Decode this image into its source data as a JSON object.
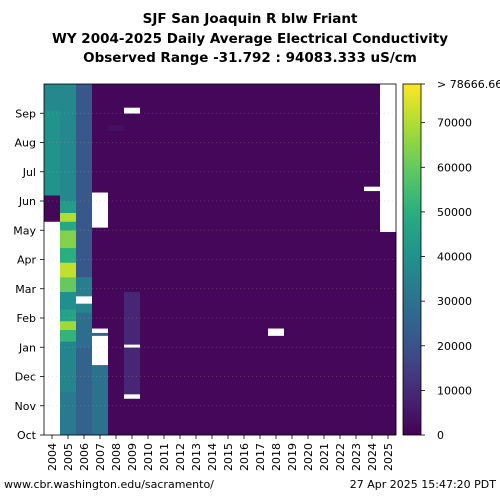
{
  "title_lines": [
    "SJF San Joaquin R blw Friant",
    "WY 2004-2025 Daily Average Electrical Conductivity",
    "Observed Range -31.792 : 94083.333 uS/cm"
  ],
  "footer": {
    "url": "www.cbr.washington.edu/sacramento/",
    "timestamp": "27 Apr 2025 15:47:20 PDT"
  },
  "chart_data": {
    "type": "heatmap",
    "title": "SJF San Joaquin R blw Friant WY 2004-2025 Daily Average Electrical Conductivity",
    "subtitle": "Observed Range -31.792 : 94083.333 uS/cm",
    "x_categories": [
      "2004",
      "2005",
      "2006",
      "2007",
      "2008",
      "2009",
      "2010",
      "2011",
      "2012",
      "2013",
      "2014",
      "2015",
      "2016",
      "2017",
      "2018",
      "2019",
      "2020",
      "2021",
      "2022",
      "2023",
      "2024",
      "2025"
    ],
    "y_ticks": [
      "Oct",
      "Nov",
      "Dec",
      "Jan",
      "Feb",
      "Mar",
      "Apr",
      "May",
      "Jun",
      "Jul",
      "Aug",
      "Sep"
    ],
    "colorbar": {
      "colormap": "viridis",
      "range": [
        0,
        78666.66
      ],
      "ticks": [
        0,
        10000,
        20000,
        30000,
        40000,
        50000,
        60000,
        70000
      ],
      "tick_labels": [
        "0",
        "10000",
        "20000",
        "30000",
        "40000",
        "50000",
        "60000",
        "70000"
      ],
      "overflow_label": "> 78666.66"
    },
    "background_value": 1500,
    "columns": [
      {
        "year": "2004",
        "segments": [
          {
            "from": 0,
            "to": 7.3,
            "value": null
          },
          {
            "from": 7.3,
            "to": 8.2,
            "value": 1500
          },
          {
            "from": 8.2,
            "to": 11.1,
            "value": 40000
          },
          {
            "from": 11.1,
            "to": 12,
            "value": 37000
          }
        ]
      },
      {
        "year": "2005",
        "segments": [
          {
            "from": 0,
            "to": 1.5,
            "value": 33000
          },
          {
            "from": 1.5,
            "to": 3.2,
            "value": 36000
          },
          {
            "from": 3.2,
            "to": 3.6,
            "value": 52000
          },
          {
            "from": 3.6,
            "to": 3.9,
            "value": 68000
          },
          {
            "from": 3.9,
            "to": 4.3,
            "value": 46000
          },
          {
            "from": 4.3,
            "to": 4.9,
            "value": 39000
          },
          {
            "from": 4.9,
            "to": 5.4,
            "value": 60000
          },
          {
            "from": 5.4,
            "to": 5.9,
            "value": 72000
          },
          {
            "from": 5.9,
            "to": 6.4,
            "value": 50000
          },
          {
            "from": 6.4,
            "to": 7.0,
            "value": 64000
          },
          {
            "from": 7.0,
            "to": 7.3,
            "value": 48000
          },
          {
            "from": 7.3,
            "to": 7.6,
            "value": 70000
          },
          {
            "from": 7.6,
            "to": 8.0,
            "value": 44000
          },
          {
            "from": 8.0,
            "to": 12,
            "value": 37000
          }
        ]
      },
      {
        "year": "2006",
        "segments": [
          {
            "from": 0,
            "to": 3.0,
            "value": 25000
          },
          {
            "from": 3.0,
            "to": 4.2,
            "value": 29000
          },
          {
            "from": 4.2,
            "to": 4.5,
            "value": 36000
          },
          {
            "from": 4.5,
            "to": 4.75,
            "value": null
          },
          {
            "from": 4.75,
            "to": 5.4,
            "value": 34000
          },
          {
            "from": 5.4,
            "to": 12,
            "value": 22000
          }
        ]
      },
      {
        "year": "2007",
        "segments": [
          {
            "from": 0,
            "to": 2.4,
            "value": 30000
          },
          {
            "from": 2.4,
            "to": 3.4,
            "value": null
          },
          {
            "from": 3.4,
            "to": 3.5,
            "value": 26000
          },
          {
            "from": 3.5,
            "to": 3.65,
            "value": null
          },
          {
            "from": 3.65,
            "to": 7.1,
            "value": 1500
          },
          {
            "from": 7.1,
            "to": 8.3,
            "value": null
          },
          {
            "from": 8.3,
            "to": 12,
            "value": 1500
          }
        ]
      },
      {
        "year": "2008",
        "segments": [
          {
            "from": 0,
            "to": 10.4,
            "value": 1500
          },
          {
            "from": 10.4,
            "to": 10.6,
            "value": 3500
          },
          {
            "from": 10.6,
            "to": 12,
            "value": 1500
          }
        ]
      },
      {
        "year": "2009",
        "segments": [
          {
            "from": 0,
            "to": 1.25,
            "value": 1500
          },
          {
            "from": 1.25,
            "to": 1.4,
            "value": null
          },
          {
            "from": 1.4,
            "to": 3.0,
            "value": 9000
          },
          {
            "from": 3.0,
            "to": 3.1,
            "value": null
          },
          {
            "from": 3.1,
            "to": 4.9,
            "value": 9000
          },
          {
            "from": 4.9,
            "to": 11.0,
            "value": 1500
          },
          {
            "from": 11.0,
            "to": 11.2,
            "value": null
          },
          {
            "from": 11.2,
            "to": 12,
            "value": 1500
          }
        ]
      },
      {
        "year": "2010",
        "segments": [
          {
            "from": 0,
            "to": 12,
            "value": 1500
          }
        ]
      },
      {
        "year": "2011",
        "segments": [
          {
            "from": 0,
            "to": 12,
            "value": 1500
          }
        ]
      },
      {
        "year": "2012",
        "segments": [
          {
            "from": 0,
            "to": 12,
            "value": 1500
          }
        ]
      },
      {
        "year": "2013",
        "segments": [
          {
            "from": 0,
            "to": 12,
            "value": 1500
          }
        ]
      },
      {
        "year": "2014",
        "segments": [
          {
            "from": 0,
            "to": 12,
            "value": 1500
          }
        ]
      },
      {
        "year": "2015",
        "segments": [
          {
            "from": 0,
            "to": 12,
            "value": 1500
          }
        ]
      },
      {
        "year": "2016",
        "segments": [
          {
            "from": 0,
            "to": 12,
            "value": 1500
          }
        ]
      },
      {
        "year": "2017",
        "segments": [
          {
            "from": 0,
            "to": 12,
            "value": 1500
          }
        ]
      },
      {
        "year": "2018",
        "segments": [
          {
            "from": 0,
            "to": 3.4,
            "value": 1500
          },
          {
            "from": 3.4,
            "to": 3.65,
            "value": null
          },
          {
            "from": 3.65,
            "to": 12,
            "value": 1500
          }
        ]
      },
      {
        "year": "2019",
        "segments": [
          {
            "from": 0,
            "to": 12,
            "value": 1500
          }
        ]
      },
      {
        "year": "2020",
        "segments": [
          {
            "from": 0,
            "to": 12,
            "value": 1500
          }
        ]
      },
      {
        "year": "2021",
        "segments": [
          {
            "from": 0,
            "to": 12,
            "value": 1500
          }
        ]
      },
      {
        "year": "2022",
        "segments": [
          {
            "from": 0,
            "to": 12,
            "value": 1500
          }
        ]
      },
      {
        "year": "2023",
        "segments": [
          {
            "from": 0,
            "to": 12,
            "value": 1500
          }
        ]
      },
      {
        "year": "2024",
        "segments": [
          {
            "from": 0,
            "to": 8.35,
            "value": 1500
          },
          {
            "from": 8.35,
            "to": 8.5,
            "value": null
          },
          {
            "from": 8.5,
            "to": 12,
            "value": 1500
          }
        ]
      },
      {
        "year": "2025",
        "segments": [
          {
            "from": 0,
            "to": 6.95,
            "value": 1500
          },
          {
            "from": 6.95,
            "to": 12,
            "value": null
          }
        ]
      }
    ]
  }
}
